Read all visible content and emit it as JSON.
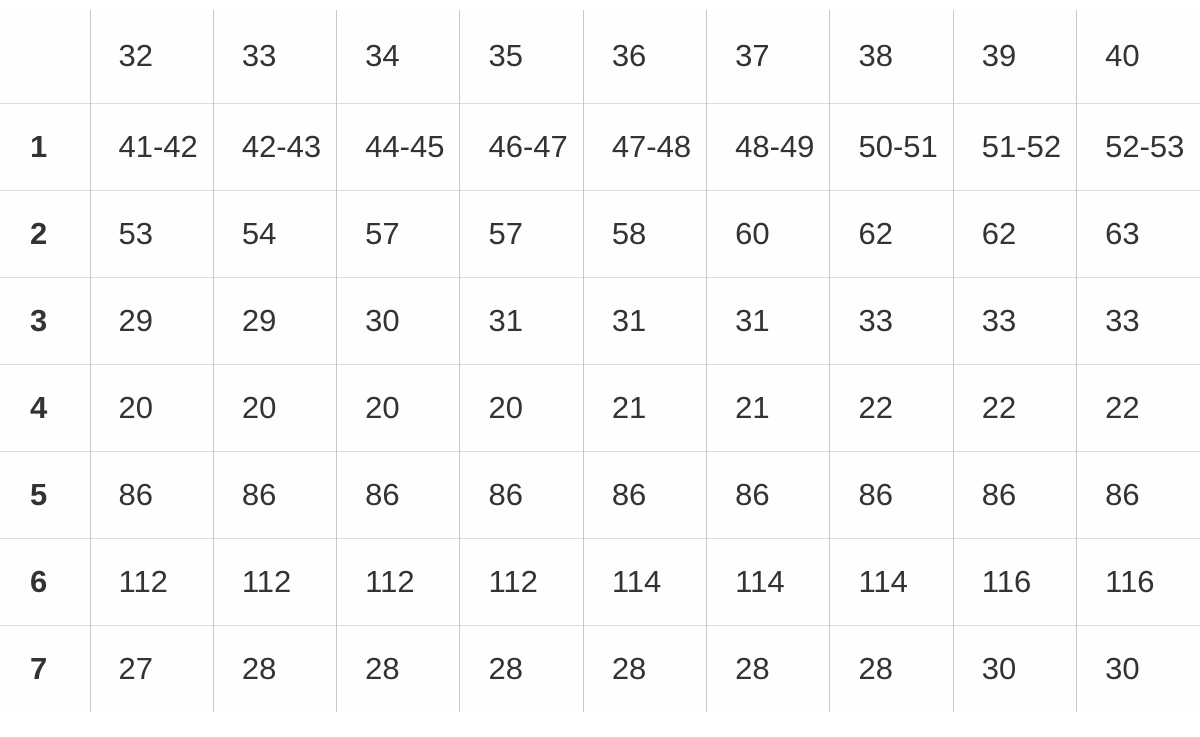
{
  "chart_data": {
    "type": "table",
    "title": "",
    "corner_label": "",
    "columns": [
      "32",
      "33",
      "34",
      "35",
      "36",
      "37",
      "38",
      "39",
      "40"
    ],
    "rows": [
      {
        "label": "1",
        "values": [
          "41-42",
          "42-43",
          "44-45",
          "46-47",
          "47-48",
          "48-49",
          "50-51",
          "51-52",
          "52-53"
        ]
      },
      {
        "label": "2",
        "values": [
          "53",
          "54",
          "57",
          "57",
          "58",
          "60",
          "62",
          "62",
          "63"
        ]
      },
      {
        "label": "3",
        "values": [
          "29",
          "29",
          "30",
          "31",
          "31",
          "31",
          "33",
          "33",
          "33"
        ]
      },
      {
        "label": "4",
        "values": [
          "20",
          "20",
          "20",
          "20",
          "21",
          "21",
          "22",
          "22",
          "22"
        ]
      },
      {
        "label": "5",
        "values": [
          "86",
          "86",
          "86",
          "86",
          "86",
          "86",
          "86",
          "86",
          "86"
        ]
      },
      {
        "label": "6",
        "values": [
          "112",
          "112",
          "112",
          "112",
          "114",
          "114",
          "114",
          "116",
          "116"
        ]
      },
      {
        "label": "7",
        "values": [
          "27",
          "28",
          "28",
          "28",
          "28",
          "28",
          "28",
          "30",
          "30"
        ]
      }
    ],
    "layout": {
      "grid": "internal-borders-only",
      "header_row": "top",
      "row_label_column": "left"
    },
    "colors": {
      "text": "#333333",
      "vertical_border": "#c7c7c7",
      "horizontal_border": "#dcdcdc",
      "background": "#ffffff"
    }
  }
}
